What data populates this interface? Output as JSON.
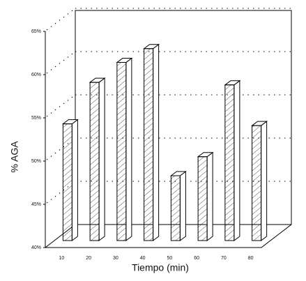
{
  "chart_data": {
    "type": "bar3d",
    "x_label": "Tiempo (min)",
    "y_label": "% AGA",
    "categories": [
      "10",
      "20",
      "30",
      "40",
      "50",
      "60",
      "70",
      "80"
    ],
    "values": [
      53.5,
      58.3,
      60.6,
      62.2,
      47.5,
      49.7,
      58,
      53.3
    ],
    "color": "#ffffff",
    "ylim": [
      40,
      65
    ],
    "yticks": [
      {
        "value": 40,
        "label": "40%"
      },
      {
        "value": 45,
        "label": "45%"
      },
      {
        "value": 50,
        "label": "50%"
      },
      {
        "value": 55,
        "label": "55%"
      },
      {
        "value": 60,
        "label": "60%"
      },
      {
        "value": 65,
        "label": "65%"
      }
    ],
    "grid": true
  }
}
